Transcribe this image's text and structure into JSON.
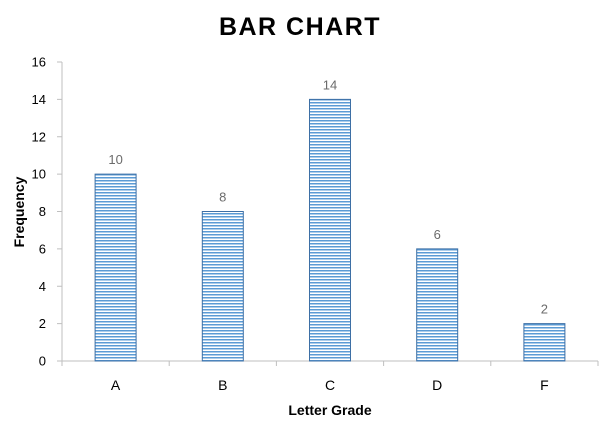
{
  "chart_data": {
    "type": "bar",
    "title": "BAR CHART",
    "xlabel": "Letter Grade",
    "ylabel": "Frequency",
    "categories": [
      "A",
      "B",
      "C",
      "D",
      "F"
    ],
    "values": [
      10,
      8,
      14,
      6,
      2
    ],
    "ylim": [
      0,
      16
    ],
    "yticks": [
      0,
      2,
      4,
      6,
      8,
      10,
      12,
      14,
      16
    ],
    "data_labels": true,
    "grid": false,
    "legend": "none",
    "colors": {
      "bar_fill": "#9dc3e6",
      "bar_stripe": "#5b9bd5",
      "bar_edge": "#3d6fa5",
      "data_label": "#6b6b6b",
      "axis": "#bfbfbf"
    }
  }
}
